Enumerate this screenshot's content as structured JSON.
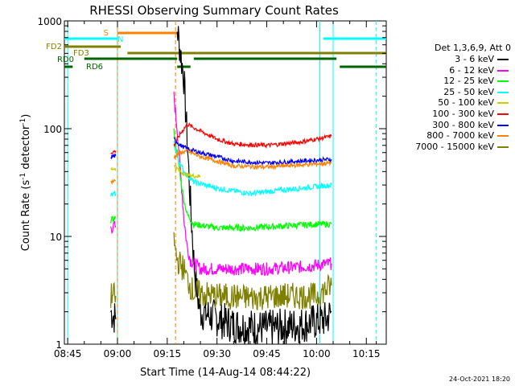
{
  "chart_data": {
    "type": "line",
    "title": "RHESSI Observing Summary Count Rates",
    "xlabel": "Start Time (14-Aug-14 08:44:22)",
    "ylabel": "Count Rate (s",
    "ylabel_sup": "-1",
    "ylabel_tail": " detector",
    "ylabel_sup2": "-1",
    "ylabel_close": ")",
    "yscale": "log",
    "ylim": [
      1,
      1000
    ],
    "xlim_minutes": [
      -1,
      96
    ],
    "x_ticks": [
      "08:45",
      "09:00",
      "09:15",
      "09:30",
      "09:45",
      "10:00",
      "10:15"
    ],
    "x_tick_minutes": [
      0,
      15,
      30,
      45,
      60,
      75,
      90
    ],
    "y_ticks": [
      "1",
      "10",
      "100",
      "1000"
    ],
    "y_tick_values": [
      1,
      10,
      100,
      1000
    ],
    "legend_title": "Det 1,3,6,9, Att 0",
    "legend_position": "right",
    "series": [
      {
        "name": "3 - 6 keV",
        "color": "#000000",
        "segments": [
          [
            [
              13,
              2.0
            ],
            [
              14,
              1.8
            ],
            [
              14.5,
              1.7
            ]
          ],
          [
            [
              33,
              850
            ],
            [
              35,
              300
            ],
            [
              36,
              80
            ],
            [
              37,
              20
            ],
            [
              38,
              6
            ],
            [
              39,
              3
            ],
            [
              40,
              2
            ],
            [
              50,
              1.5
            ],
            [
              60,
              1.4
            ],
            [
              70,
              1.5
            ],
            [
              78,
              1.7
            ],
            [
              79.5,
              2
            ]
          ]
        ],
        "noise": 0.35
      },
      {
        "name": "6 - 12 keV",
        "color": "#ff00ff",
        "segments": [
          [
            [
              13,
              12
            ],
            [
              14.5,
              12.5
            ]
          ],
          [
            [
              32,
              200
            ],
            [
              33,
              100
            ],
            [
              34,
              40
            ],
            [
              35,
              15
            ],
            [
              36,
              8
            ],
            [
              37,
              6
            ],
            [
              40,
              5
            ],
            [
              50,
              5
            ],
            [
              60,
              5
            ],
            [
              70,
              5.2
            ],
            [
              79.5,
              5.6
            ]
          ]
        ],
        "noise": 0.12
      },
      {
        "name": "12 - 25 keV",
        "color": "#00ff00",
        "segments": [
          [
            [
              13,
              14
            ],
            [
              14.5,
              15
            ]
          ],
          [
            [
              32,
              95
            ],
            [
              33,
              60
            ],
            [
              34,
              35
            ],
            [
              35,
              22
            ],
            [
              36,
              16
            ],
            [
              38,
              13
            ],
            [
              45,
              12
            ],
            [
              55,
              12
            ],
            [
              65,
              12.5
            ],
            [
              75,
              13
            ],
            [
              79.5,
              13
            ]
          ]
        ],
        "noise": 0.06
      },
      {
        "name": "25 - 50 keV",
        "color": "#00ffff",
        "segments": [
          [
            [
              13,
              24
            ],
            [
              14.5,
              25
            ]
          ],
          [
            [
              32,
              75
            ],
            [
              33,
              55
            ],
            [
              35,
              40
            ],
            [
              38,
              32
            ],
            [
              45,
              28
            ],
            [
              55,
              25
            ],
            [
              65,
              27
            ],
            [
              75,
              29
            ],
            [
              79.5,
              30
            ]
          ]
        ],
        "noise": 0.05
      },
      {
        "name": "50 - 100 keV",
        "color": "#cccc00",
        "segments": [
          [
            [
              13,
              42
            ],
            [
              14.5,
              43
            ]
          ],
          [
            [
              32,
              45
            ],
            [
              34,
              40
            ],
            [
              36,
              37
            ],
            [
              40,
              36
            ]
          ]
        ],
        "noise": 0.04
      },
      {
        "name": "100 - 300 keV",
        "color": "#ff0000",
        "segments": [
          [
            [
              13,
              60
            ],
            [
              14.5,
              62
            ]
          ],
          [
            [
              32,
              70
            ],
            [
              34,
              90
            ],
            [
              36,
              110
            ],
            [
              40,
              95
            ],
            [
              45,
              80
            ],
            [
              50,
              72
            ],
            [
              60,
              70
            ],
            [
              70,
              75
            ],
            [
              79.5,
              85
            ]
          ]
        ],
        "noise": 0.04
      },
      {
        "name": "300 - 800 keV",
        "color": "#0000ff",
        "segments": [
          [
            [
              13,
              55
            ],
            [
              14.5,
              56
            ]
          ],
          [
            [
              32,
              80
            ],
            [
              34,
              70
            ],
            [
              36,
              65
            ],
            [
              40,
              60
            ],
            [
              45,
              55
            ],
            [
              50,
              50
            ],
            [
              60,
              48
            ],
            [
              70,
              50
            ],
            [
              79.5,
              52
            ]
          ]
        ],
        "noise": 0.04
      },
      {
        "name": "800 - 7000 keV",
        "color": "#ff8000",
        "segments": [
          [
            [
              13,
              32
            ],
            [
              14.5,
              33
            ]
          ],
          [
            [
              32,
              55
            ],
            [
              34,
              60
            ],
            [
              36,
              62
            ],
            [
              40,
              55
            ],
            [
              45,
              50
            ],
            [
              50,
              45
            ],
            [
              60,
              44
            ],
            [
              70,
              46
            ],
            [
              79.5,
              48
            ]
          ]
        ],
        "noise": 0.04
      },
      {
        "name": "7000 - 15000 keV",
        "color": "#808000",
        "segments": [
          [
            [
              13,
              2.8
            ],
            [
              14.5,
              2.8
            ]
          ],
          [
            [
              32,
              9
            ],
            [
              33,
              6
            ],
            [
              34,
              5.5
            ],
            [
              35,
              5
            ],
            [
              36,
              4
            ],
            [
              38,
              3
            ],
            [
              45,
              2.8
            ],
            [
              55,
              2.7
            ],
            [
              65,
              2.8
            ],
            [
              75,
              2.8
            ],
            [
              79.5,
              3.5
            ]
          ]
        ],
        "noise": 0.25
      }
    ],
    "flag_bars": [
      {
        "label": "S",
        "color": "#ff8000",
        "intervals": [
          [
            15,
            33
          ]
        ]
      },
      {
        "label": "N",
        "color": "#00ffff",
        "intervals": [
          [
            -1,
            15
          ],
          [
            77,
            96
          ]
        ]
      },
      {
        "label": "FD2",
        "color": "#808000",
        "intervals": [
          [
            -1,
            16
          ]
        ]
      },
      {
        "label": "FD3",
        "color": "#808000",
        "intervals": [
          [
            18,
            96
          ]
        ]
      },
      {
        "label": "RD0",
        "color": "#006400",
        "intervals": [
          [
            5,
            33
          ],
          [
            38,
            81
          ]
        ]
      },
      {
        "label": "RD6",
        "color": "#006400",
        "intervals": [
          [
            -1,
            1.5
          ],
          [
            33,
            37
          ],
          [
            82,
            96
          ]
        ]
      }
    ],
    "vertical_lines": [
      {
        "minute": 0,
        "color": "#00ffff",
        "style": "solid"
      },
      {
        "minute": 15,
        "color": "#00ffff",
        "style": "solid"
      },
      {
        "minute": 15,
        "color": "#ff8000",
        "style": "dashed"
      },
      {
        "minute": 32.5,
        "color": "#ff8000",
        "style": "dashed"
      },
      {
        "minute": 76,
        "color": "#00ffff",
        "style": "solid"
      },
      {
        "minute": 80,
        "color": "#00ffff",
        "style": "solid"
      },
      {
        "minute": 93,
        "color": "#00ffff",
        "style": "dashed"
      }
    ]
  },
  "footer": {
    "date": "24-Oct-2021 18:20"
  }
}
